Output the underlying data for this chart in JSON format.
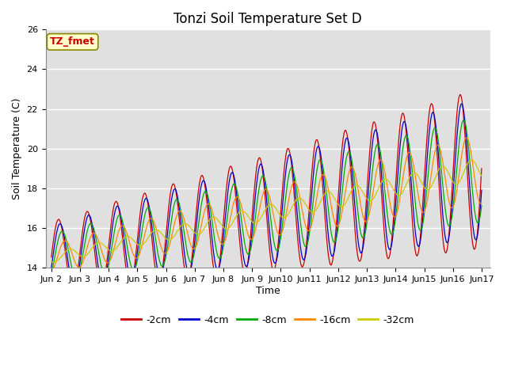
{
  "title": "Tonzi Soil Temperature Set D",
  "xlabel": "Time",
  "ylabel": "Soil Temperature (C)",
  "ylim": [
    14,
    26
  ],
  "legend_label": "TZ_fmet",
  "series_labels": [
    "-2cm",
    "-4cm",
    "-8cm",
    "-16cm",
    "-32cm"
  ],
  "series_colors": [
    "#cc0000",
    "#0000cc",
    "#00aa00",
    "#ff8800",
    "#cccc00"
  ],
  "background_color": "#e0e0e0",
  "title_fontsize": 12,
  "axis_fontsize": 9,
  "tick_fontsize": 8
}
